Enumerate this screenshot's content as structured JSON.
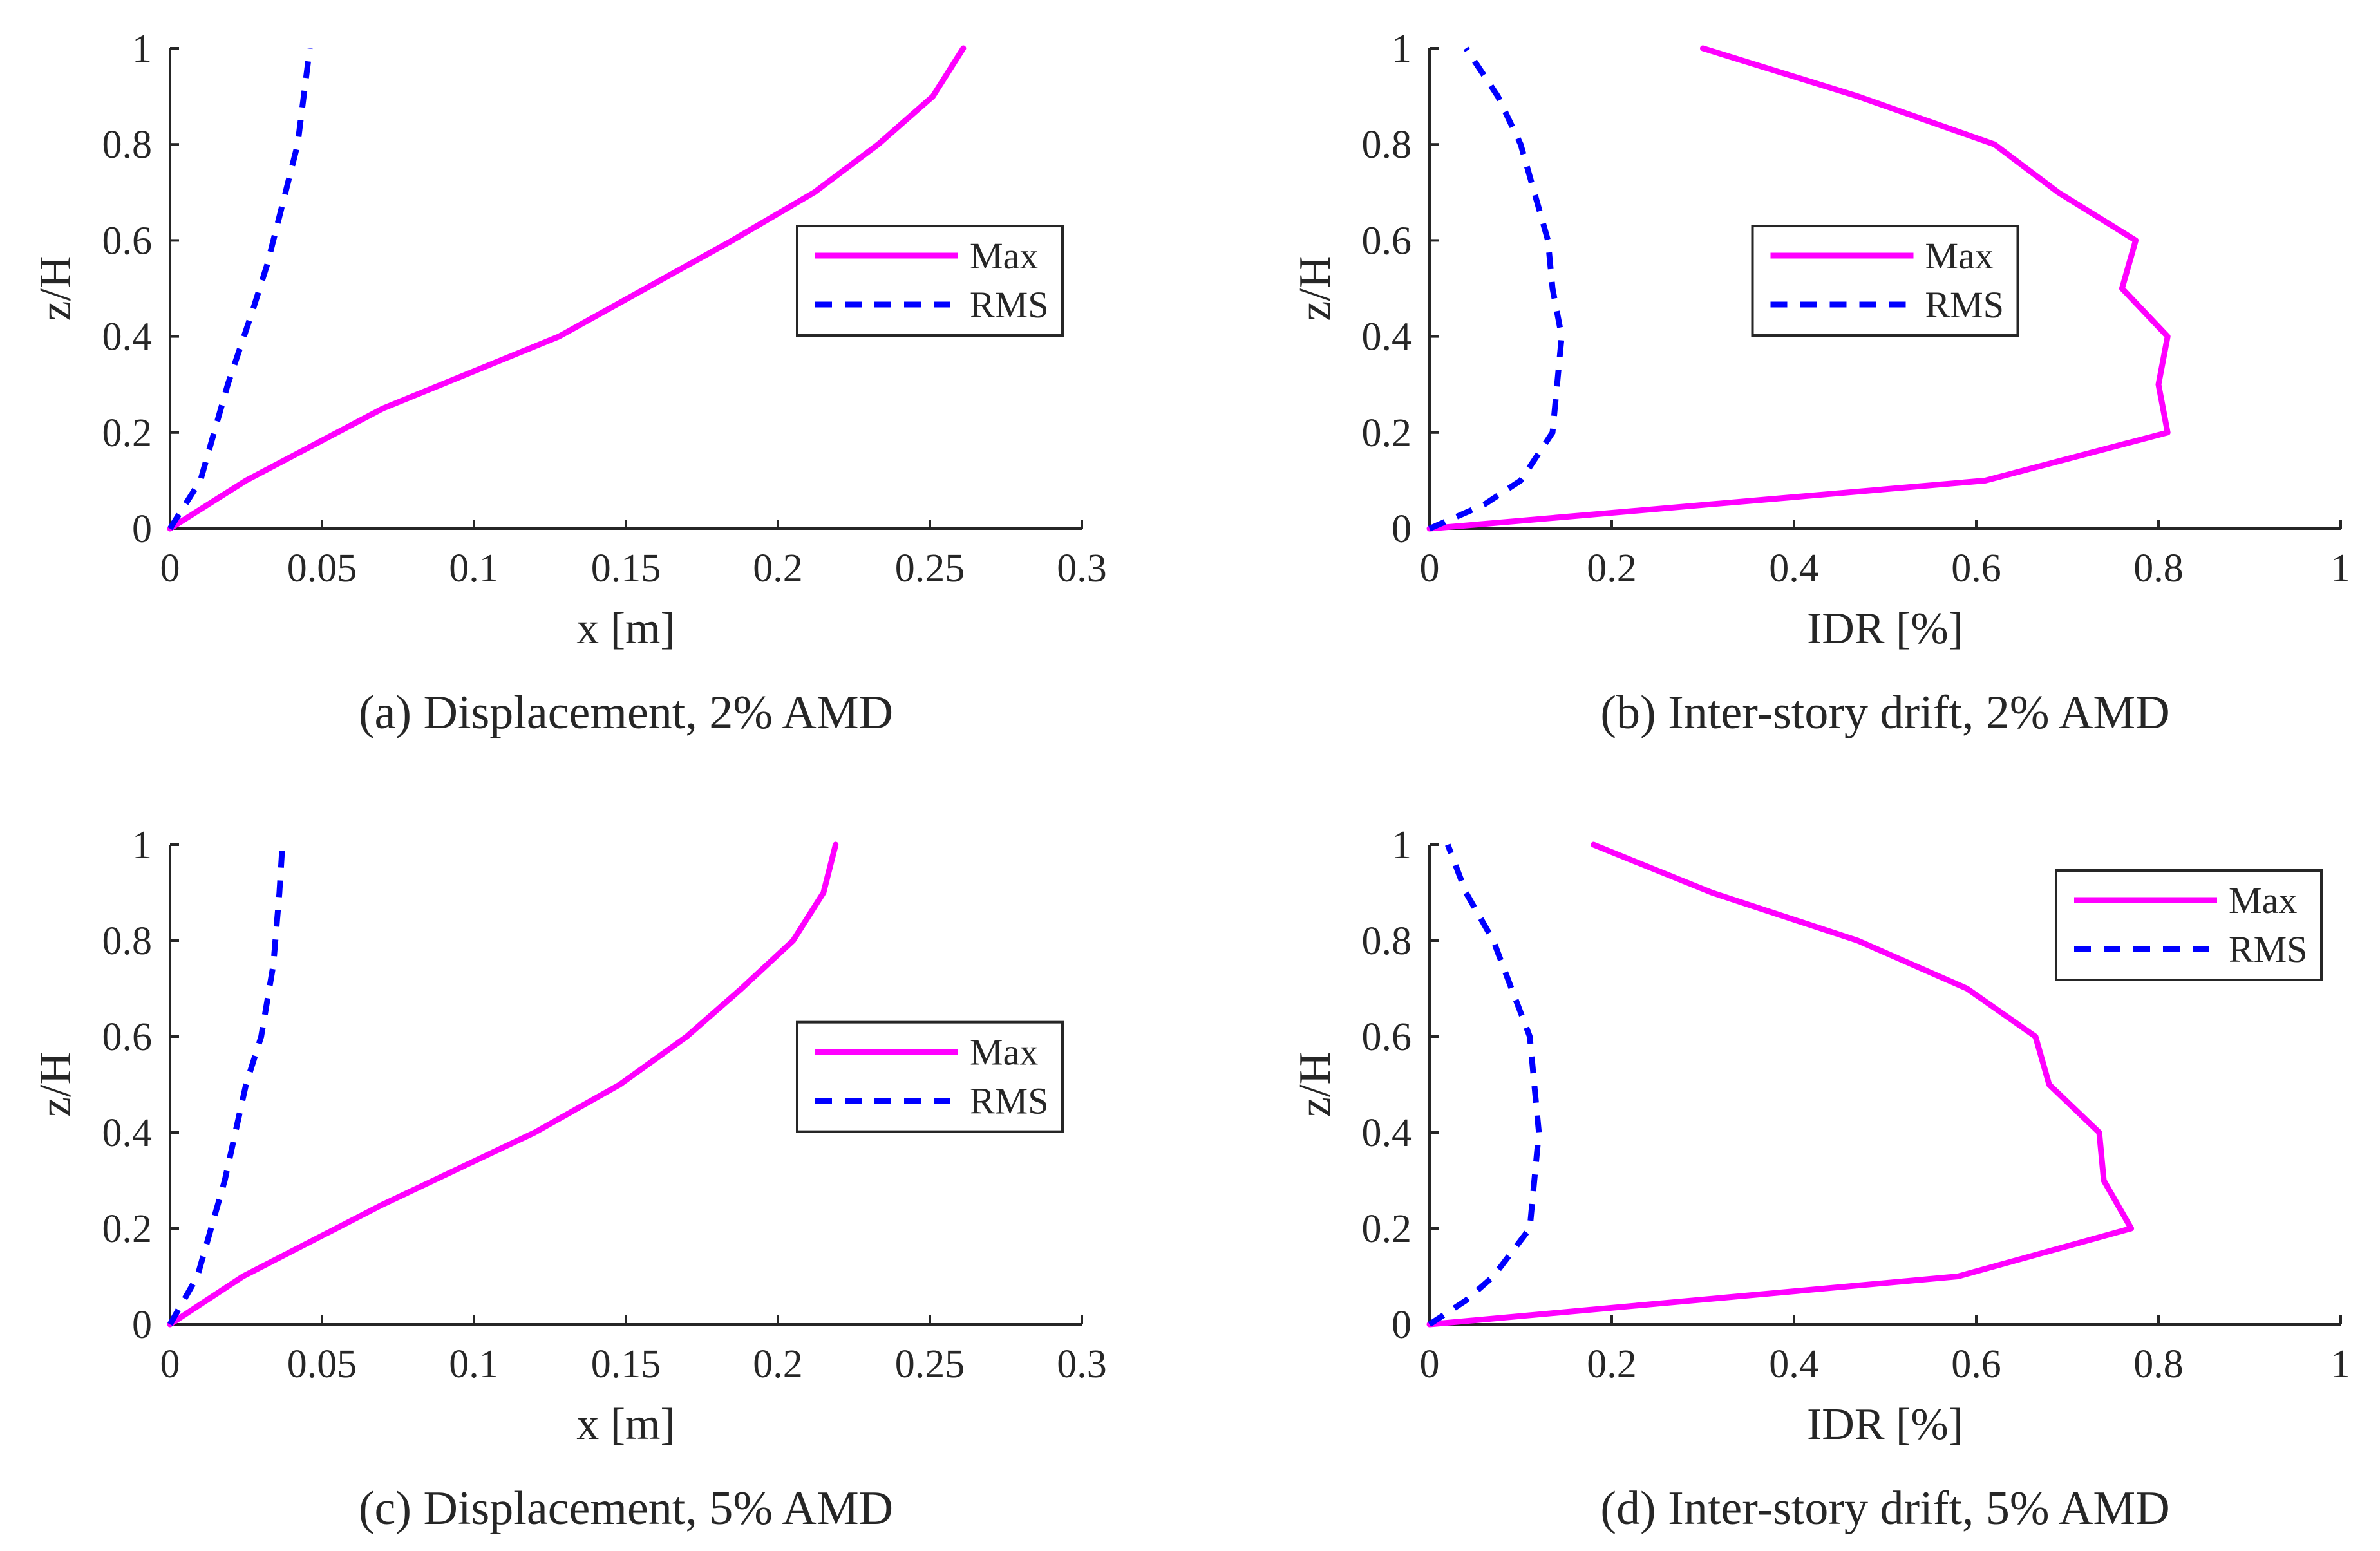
{
  "chart_data": [
    {
      "type": "line",
      "caption": "(a) Displacement, 2% AMD",
      "xlabel": "x [m]",
      "ylabel": "z/H",
      "xlim": [
        0,
        0.3
      ],
      "ylim": [
        0,
        1
      ],
      "xticks": [
        0,
        0.05,
        0.1,
        0.15,
        0.2,
        0.25,
        0.3
      ],
      "xtick_labels": [
        "0",
        "0.05",
        "0.1",
        "0.15",
        "0.2",
        "0.25",
        "0.3"
      ],
      "yticks": [
        0,
        0.2,
        0.4,
        0.6,
        0.8,
        1
      ],
      "ytick_labels": [
        "0",
        "0.2",
        "0.4",
        "0.6",
        "0.8",
        "1"
      ],
      "legend": "middle-right",
      "series": [
        {
          "name": "Max",
          "color": "#ff00ff",
          "style": "solid",
          "points": [
            [
              0,
              0
            ],
            [
              0.025,
              0.1
            ],
            [
              0.07,
              0.25
            ],
            [
              0.128,
              0.4
            ],
            [
              0.185,
              0.6
            ],
            [
              0.212,
              0.7
            ],
            [
              0.233,
              0.8
            ],
            [
              0.251,
              0.9
            ],
            [
              0.261,
              1.0
            ]
          ]
        },
        {
          "name": "RMS",
          "color": "#0000ff",
          "style": "dashed",
          "points": [
            [
              0,
              0
            ],
            [
              0.01,
              0.1
            ],
            [
              0.019,
              0.3
            ],
            [
              0.027,
              0.45
            ],
            [
              0.032,
              0.55
            ],
            [
              0.038,
              0.7
            ],
            [
              0.042,
              0.8
            ],
            [
              0.046,
              1.0
            ]
          ]
        }
      ]
    },
    {
      "type": "line",
      "caption": "(b) Inter-story drift, 2% AMD",
      "xlabel": "IDR [%]",
      "ylabel": "z/H",
      "xlim": [
        0,
        1
      ],
      "ylim": [
        0,
        1
      ],
      "xticks": [
        0,
        0.2,
        0.4,
        0.6,
        0.8,
        1
      ],
      "xtick_labels": [
        "0",
        "0.2",
        "0.4",
        "0.6",
        "0.8",
        "1"
      ],
      "yticks": [
        0,
        0.2,
        0.4,
        0.6,
        0.8,
        1
      ],
      "ytick_labels": [
        "0",
        "0.2",
        "0.4",
        "0.6",
        "0.8",
        "1"
      ],
      "legend": "middle-center",
      "series": [
        {
          "name": "Max",
          "color": "#ff00ff",
          "style": "solid",
          "points": [
            [
              0,
              0
            ],
            [
              0.61,
              0.1
            ],
            [
              0.81,
              0.2
            ],
            [
              0.8,
              0.3
            ],
            [
              0.81,
              0.4
            ],
            [
              0.76,
              0.5
            ],
            [
              0.775,
              0.6
            ],
            [
              0.69,
              0.7
            ],
            [
              0.62,
              0.8
            ],
            [
              0.47,
              0.9
            ],
            [
              0.3,
              1.0
            ]
          ]
        },
        {
          "name": "RMS",
          "color": "#0000ff",
          "style": "dashed",
          "points": [
            [
              0,
              0
            ],
            [
              0.06,
              0.05
            ],
            [
              0.1,
              0.1
            ],
            [
              0.135,
              0.2
            ],
            [
              0.14,
              0.3
            ],
            [
              0.145,
              0.4
            ],
            [
              0.135,
              0.5
            ],
            [
              0.13,
              0.6
            ],
            [
              0.115,
              0.7
            ],
            [
              0.1,
              0.8
            ],
            [
              0.075,
              0.9
            ],
            [
              0.04,
              1.0
            ]
          ]
        }
      ]
    },
    {
      "type": "line",
      "caption": "(c) Displacement, 5% AMD",
      "xlabel": "x [m]",
      "ylabel": "z/H",
      "xlim": [
        0,
        0.3
      ],
      "ylim": [
        0,
        1
      ],
      "xticks": [
        0,
        0.05,
        0.1,
        0.15,
        0.2,
        0.25,
        0.3
      ],
      "xtick_labels": [
        "0",
        "0.05",
        "0.1",
        "0.15",
        "0.2",
        "0.25",
        "0.3"
      ],
      "yticks": [
        0,
        0.2,
        0.4,
        0.6,
        0.8,
        1
      ],
      "ytick_labels": [
        "0",
        "0.2",
        "0.4",
        "0.6",
        "0.8",
        "1"
      ],
      "legend": "middle-right",
      "series": [
        {
          "name": "Max",
          "color": "#ff00ff",
          "style": "solid",
          "points": [
            [
              0,
              0
            ],
            [
              0.024,
              0.1
            ],
            [
              0.07,
              0.25
            ],
            [
              0.12,
              0.4
            ],
            [
              0.148,
              0.5
            ],
            [
              0.17,
              0.6
            ],
            [
              0.188,
              0.7
            ],
            [
              0.205,
              0.8
            ],
            [
              0.215,
              0.9
            ],
            [
              0.219,
              1.0
            ]
          ]
        },
        {
          "name": "RMS",
          "color": "#0000ff",
          "style": "dashed",
          "points": [
            [
              0,
              0
            ],
            [
              0.009,
              0.1
            ],
            [
              0.018,
              0.3
            ],
            [
              0.025,
              0.5
            ],
            [
              0.03,
              0.6
            ],
            [
              0.034,
              0.75
            ],
            [
              0.036,
              0.9
            ],
            [
              0.037,
              1.0
            ]
          ]
        }
      ]
    },
    {
      "type": "line",
      "caption": "(d) Inter-story drift, 5% AMD",
      "xlabel": "IDR [%]",
      "ylabel": "z/H",
      "xlim": [
        0,
        1
      ],
      "ylim": [
        0,
        1
      ],
      "xticks": [
        0,
        0.2,
        0.4,
        0.6,
        0.8,
        1
      ],
      "xtick_labels": [
        "0",
        "0.2",
        "0.4",
        "0.6",
        "0.8",
        "1"
      ],
      "yticks": [
        0,
        0.2,
        0.4,
        0.6,
        0.8,
        1
      ],
      "ytick_labels": [
        "0",
        "0.2",
        "0.4",
        "0.6",
        "0.8",
        "1"
      ],
      "legend": "top-right",
      "series": [
        {
          "name": "Max",
          "color": "#ff00ff",
          "style": "solid",
          "points": [
            [
              0,
              0
            ],
            [
              0.58,
              0.1
            ],
            [
              0.77,
              0.2
            ],
            [
              0.74,
              0.3
            ],
            [
              0.735,
              0.4
            ],
            [
              0.68,
              0.5
            ],
            [
              0.665,
              0.6
            ],
            [
              0.59,
              0.7
            ],
            [
              0.47,
              0.8
            ],
            [
              0.31,
              0.9
            ],
            [
              0.18,
              1.0
            ]
          ]
        },
        {
          "name": "RMS",
          "color": "#0000ff",
          "style": "dashed",
          "points": [
            [
              0,
              0
            ],
            [
              0.04,
              0.05
            ],
            [
              0.07,
              0.1
            ],
            [
              0.11,
              0.2
            ],
            [
              0.115,
              0.3
            ],
            [
              0.12,
              0.4
            ],
            [
              0.115,
              0.5
            ],
            [
              0.11,
              0.6
            ],
            [
              0.09,
              0.7
            ],
            [
              0.07,
              0.8
            ],
            [
              0.04,
              0.9
            ],
            [
              0.02,
              1.0
            ]
          ]
        }
      ]
    }
  ]
}
